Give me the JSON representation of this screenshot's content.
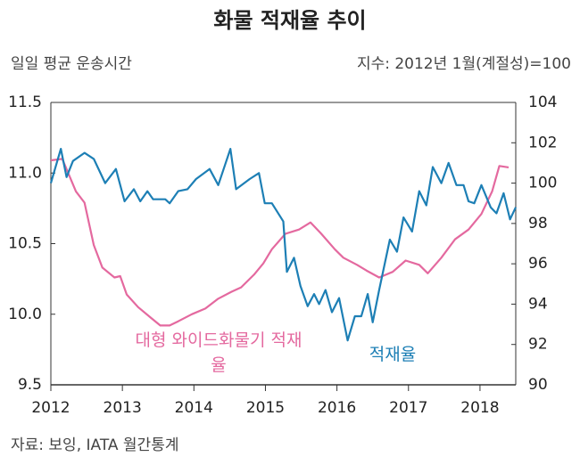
{
  "chart_data": {
    "type": "line",
    "title": "화물 적재율 추이",
    "ylabel": "일일 평균 운송시간",
    "y2label": "지수: 2012년 1월(계절성)=100",
    "source": "자료: 보잉, IATA 월간통계",
    "xlim": [
      2012,
      2018.5
    ],
    "xticks": [
      2012,
      2013,
      2014,
      2015,
      2016,
      2017,
      2018
    ],
    "ylim": [
      9.5,
      11.5
    ],
    "yticks": [
      9.5,
      {
        "value": 10,
        "label": "10.0"
      },
      10.5,
      {
        "value": 11,
        "label": "11.0"
      },
      11.5
    ],
    "y2lim": [
      90,
      104
    ],
    "y2ticks": [
      90,
      92,
      94,
      96,
      98,
      100,
      102,
      104
    ],
    "series": [
      {
        "name": "대형 와이드화물기 적재율",
        "color": "#e4699f",
        "axis": "y",
        "x": [
          2012.0,
          2012.16,
          2012.35,
          2012.47,
          2012.6,
          2012.72,
          2012.89,
          2012.97,
          2013.06,
          2013.22,
          2013.41,
          2013.53,
          2013.66,
          2013.78,
          2013.97,
          2014.16,
          2014.34,
          2014.53,
          2014.66,
          2014.84,
          2014.97,
          2015.09,
          2015.28,
          2015.47,
          2015.63,
          2015.78,
          2015.97,
          2016.09,
          2016.28,
          2016.41,
          2016.59,
          2016.78,
          2016.96,
          2017.15,
          2017.27,
          2017.46,
          2017.65,
          2017.84,
          2018.02,
          2018.17,
          2018.27,
          2018.4
        ],
        "values": [
          11.09,
          11.1,
          10.87,
          10.79,
          10.49,
          10.33,
          10.26,
          10.27,
          10.14,
          10.05,
          9.97,
          9.92,
          9.92,
          9.95,
          10.0,
          10.04,
          10.11,
          10.16,
          10.19,
          10.28,
          10.36,
          10.46,
          10.57,
          10.6,
          10.65,
          10.57,
          10.46,
          10.4,
          10.35,
          10.31,
          10.26,
          10.3,
          10.38,
          10.35,
          10.29,
          10.4,
          10.53,
          10.6,
          10.71,
          10.87,
          11.05,
          11.04
        ]
      },
      {
        "name": "적재율",
        "color": "#1d7fb5",
        "axis": "y2",
        "x": [
          2012.0,
          2012.14,
          2012.22,
          2012.31,
          2012.47,
          2012.6,
          2012.76,
          2012.91,
          2013.03,
          2013.16,
          2013.25,
          2013.35,
          2013.43,
          2013.6,
          2013.66,
          2013.78,
          2013.91,
          2014.03,
          2014.22,
          2014.34,
          2014.51,
          2014.59,
          2014.78,
          2014.91,
          2014.99,
          2015.09,
          2015.25,
          2015.3,
          2015.4,
          2015.49,
          2015.59,
          2015.68,
          2015.75,
          2015.84,
          2015.93,
          2016.03,
          2016.15,
          2016.25,
          2016.34,
          2016.43,
          2016.5,
          2016.59,
          2016.74,
          2016.84,
          2016.93,
          2017.05,
          2017.15,
          2017.25,
          2017.34,
          2017.46,
          2017.56,
          2017.67,
          2017.77,
          2017.84,
          2017.92,
          2018.02,
          2018.15,
          2018.23,
          2018.33,
          2018.42,
          2018.5
        ],
        "values": [
          100.0,
          101.7,
          100.3,
          101.1,
          101.5,
          101.2,
          100.0,
          100.7,
          99.1,
          99.7,
          99.1,
          99.6,
          99.2,
          99.2,
          99.0,
          99.6,
          99.7,
          100.2,
          100.7,
          99.9,
          101.7,
          99.7,
          100.2,
          100.5,
          99.0,
          99.0,
          98.1,
          95.6,
          96.3,
          94.9,
          93.9,
          94.5,
          94.0,
          94.7,
          93.6,
          94.3,
          92.2,
          93.4,
          93.4,
          94.5,
          93.1,
          94.7,
          97.2,
          96.6,
          98.3,
          97.6,
          99.6,
          98.9,
          100.8,
          100.0,
          101.0,
          99.9,
          99.9,
          99.1,
          99.0,
          99.9,
          98.8,
          98.5,
          99.5,
          98.2,
          98.8
        ]
      }
    ]
  }
}
